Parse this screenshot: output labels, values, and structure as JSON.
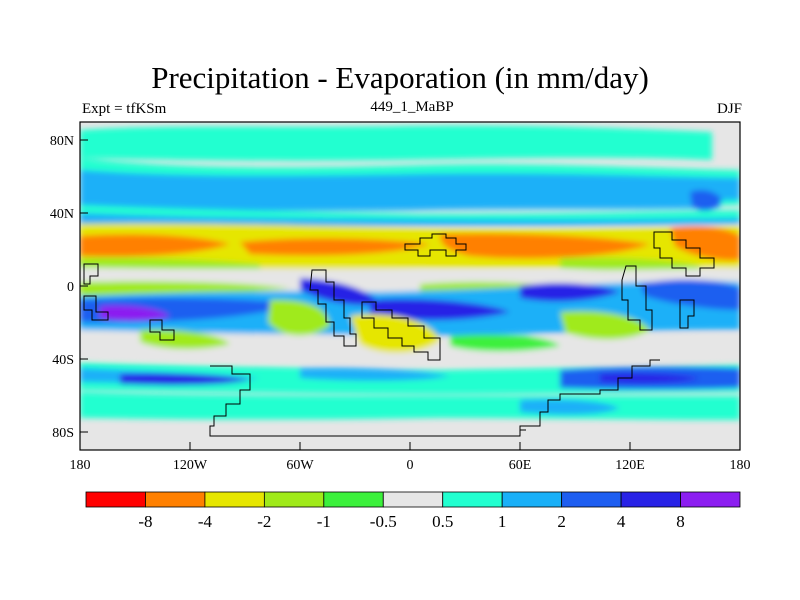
{
  "header": {
    "title": "Precipitation - Evaporation (in mm/day)",
    "expt": "Expt = tfKSm",
    "run": "449_1_MaBP",
    "season": "DJF"
  },
  "axes": {
    "x_ticks": [
      "180",
      "120W",
      "60W",
      "0",
      "60E",
      "120E",
      "180"
    ],
    "y_ticks": [
      "80N",
      "40N",
      "0",
      "40S",
      "80S"
    ]
  },
  "colorbar": {
    "colors": [
      "#ff0000",
      "#ff8000",
      "#e6e600",
      "#a0ea1a",
      "#3cf03c",
      "#e6e6e6",
      "#22ffd0",
      "#1ab0f8",
      "#1e5ef0",
      "#2822e6",
      "#8c1ef0"
    ],
    "labels": [
      "-8",
      "-4",
      "-2",
      "-1",
      "-0.5",
      "0.5",
      "1",
      "2",
      "4",
      "8"
    ]
  }
}
